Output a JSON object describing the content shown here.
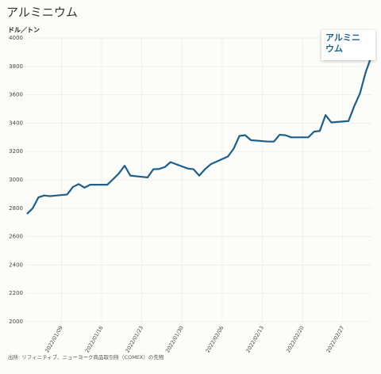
{
  "chart_data": {
    "type": "line",
    "title": "アルミニウム",
    "y_label": "ドル／トン",
    "source": "出所: リフィニティブ、ニューヨーク商品取引所（COMEX）の先物",
    "x": [
      "2022/01/03",
      "2022/01/04",
      "2022/01/05",
      "2022/01/06",
      "2022/01/07",
      "2022/01/10",
      "2022/01/11",
      "2022/01/12",
      "2022/01/13",
      "2022/01/14",
      "2022/01/17",
      "2022/01/18",
      "2022/01/19",
      "2022/01/20",
      "2022/01/21",
      "2022/01/24",
      "2022/01/25",
      "2022/01/26",
      "2022/01/27",
      "2022/01/28",
      "2022/01/31",
      "2022/02/01",
      "2022/02/02",
      "2022/02/03",
      "2022/02/04",
      "2022/02/07",
      "2022/02/08",
      "2022/02/09",
      "2022/02/10",
      "2022/02/11",
      "2022/02/14",
      "2022/02/15",
      "2022/02/16",
      "2022/02/17",
      "2022/02/18",
      "2022/02/21",
      "2022/02/22",
      "2022/02/23",
      "2022/02/24",
      "2022/02/25",
      "2022/02/28",
      "2022/03/01",
      "2022/03/02",
      "2022/03/03",
      "2022/03/04"
    ],
    "series": [
      {
        "name": "アルミニウム",
        "color": "#1d5f8a",
        "values": [
          2760,
          2800,
          2877,
          2890,
          2885,
          2897,
          2950,
          2970,
          2945,
          2966,
          2966,
          3005,
          3045,
          3100,
          3030,
          3017,
          3075,
          3077,
          3090,
          3125,
          3080,
          3075,
          3030,
          3075,
          3110,
          3165,
          3220,
          3310,
          3315,
          3280,
          3270,
          3270,
          3318,
          3315,
          3300,
          3300,
          3340,
          3345,
          3457,
          3405,
          3415,
          3520,
          3610,
          3760,
          3873
        ]
      }
    ],
    "xlim": [
      "2022/01/03",
      "2022/03/04"
    ],
    "xticks": [
      "2022/01/09",
      "2022/01/16",
      "2022/01/23",
      "2022/01/30",
      "2022/02/06",
      "2022/02/13",
      "2022/02/20",
      "2022/02/27"
    ],
    "ylim": [
      2000,
      4000
    ],
    "yticks": [
      2000,
      2200,
      2400,
      2600,
      2800,
      3000,
      3200,
      3400,
      3600,
      3800,
      4000
    ],
    "grid": true
  }
}
